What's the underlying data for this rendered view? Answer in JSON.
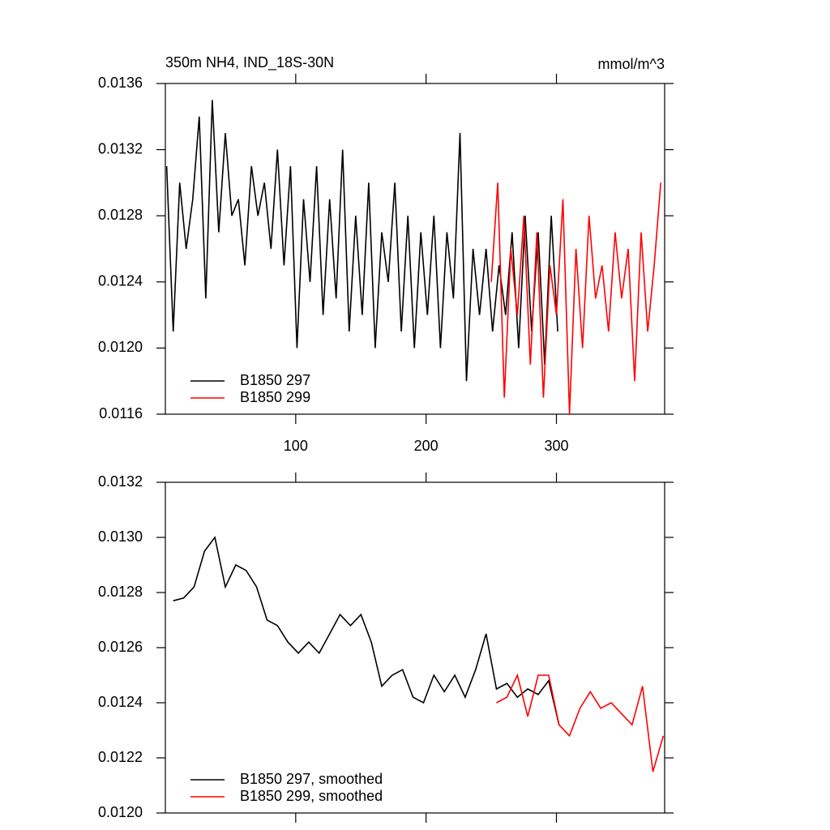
{
  "chart_data": [
    {
      "type": "line",
      "title": "350m NH4, IND_18S-30N",
      "units": "mmol/m^3",
      "xlim": [
        0,
        383
      ],
      "xticks": [
        100,
        200,
        300
      ],
      "xtick_labels": true,
      "ylim": [
        0.0116,
        0.0136
      ],
      "yticks": [
        0.0116,
        {
          "value": 0.012,
          "label": "0.0120"
        },
        0.0124,
        0.0128,
        0.0132,
        0.0136
      ],
      "legend": "lower left",
      "series": [
        {
          "name": "B1850 297",
          "color": "#000000",
          "x": [
            1,
            6,
            11,
            16,
            21,
            26,
            31,
            36,
            41,
            46,
            51,
            56,
            61,
            66,
            71,
            76,
            81,
            86,
            91,
            96,
            101,
            106,
            111,
            116,
            121,
            126,
            131,
            136,
            141,
            146,
            151,
            156,
            161,
            166,
            171,
            176,
            181,
            186,
            191,
            196,
            201,
            206,
            211,
            216,
            221,
            226,
            231,
            236,
            241,
            246,
            251,
            256,
            261,
            266,
            271,
            276,
            281,
            286,
            291,
            296,
            301
          ],
          "values": [
            0.0131,
            0.0121,
            0.013,
            0.0126,
            0.0129,
            0.0134,
            0.0123,
            0.0135,
            0.0127,
            0.0133,
            0.0128,
            0.0129,
            0.0125,
            0.0131,
            0.0128,
            0.013,
            0.0126,
            0.0132,
            0.0125,
            0.0131,
            0.012,
            0.0129,
            0.0124,
            0.0131,
            0.0122,
            0.0129,
            0.0123,
            0.0132,
            0.0121,
            0.0128,
            0.0122,
            0.013,
            0.012,
            0.0127,
            0.0124,
            0.013,
            0.0121,
            0.0128,
            0.012,
            0.0127,
            0.0122,
            0.0128,
            0.012,
            0.0127,
            0.0123,
            0.0133,
            0.0118,
            0.0126,
            0.0122,
            0.0126,
            0.0121,
            0.0125,
            0.0122,
            0.0127,
            0.012,
            0.0128,
            0.0121,
            0.0127,
            0.0119,
            0.0128,
            0.0121
          ]
        },
        {
          "name": "B1850 299",
          "color": "#ff0000",
          "x": [
            250,
            255,
            260,
            265,
            270,
            275,
            280,
            285,
            290,
            295,
            300,
            305,
            310,
            315,
            320,
            325,
            330,
            335,
            340,
            345,
            350,
            355,
            360,
            365,
            370,
            375,
            380
          ],
          "values": [
            0.0124,
            0.013,
            0.0117,
            0.0126,
            0.0122,
            0.0128,
            0.0119,
            0.0127,
            0.0117,
            0.0125,
            0.0122,
            0.0129,
            0.0116,
            0.0126,
            0.012,
            0.0128,
            0.0123,
            0.0125,
            0.0121,
            0.0127,
            0.0123,
            0.0126,
            0.0118,
            0.0127,
            0.0121,
            0.0125,
            0.013
          ]
        }
      ]
    },
    {
      "type": "line",
      "xlim": [
        0,
        383
      ],
      "xticks": [
        100,
        200,
        300
      ],
      "xtick_labels": false,
      "ylim": [
        0.012,
        0.0132
      ],
      "yticks": [
        {
          "value": 0.012,
          "label": "0.0120"
        },
        0.0122,
        0.0124,
        0.0126,
        0.0128,
        {
          "value": 0.013,
          "label": "0.0130"
        },
        0.0132
      ],
      "legend": "lower left",
      "series": [
        {
          "name": "B1850 297, smoothed",
          "color": "#000000",
          "x": [
            6,
            14,
            22,
            30,
            38,
            46,
            54,
            62,
            70,
            78,
            86,
            94,
            102,
            110,
            118,
            126,
            134,
            142,
            150,
            158,
            166,
            174,
            182,
            190,
            198,
            206,
            214,
            222,
            230,
            238,
            246,
            254,
            262,
            270,
            278,
            286,
            294,
            302
          ],
          "values": [
            0.01277,
            0.01278,
            0.01282,
            0.01295,
            0.013,
            0.01282,
            0.0129,
            0.01288,
            0.01282,
            0.0127,
            0.01268,
            0.01262,
            0.01258,
            0.01262,
            0.01258,
            0.01265,
            0.01272,
            0.01268,
            0.01272,
            0.01262,
            0.01246,
            0.0125,
            0.01252,
            0.01242,
            0.0124,
            0.0125,
            0.01244,
            0.0125,
            0.01242,
            0.01252,
            0.01265,
            0.01245,
            0.01247,
            0.01242,
            0.01245,
            0.01243,
            0.01248,
            0.01232
          ]
        },
        {
          "name": "B1850 299, smoothed",
          "color": "#ff0000",
          "x": [
            254,
            262,
            270,
            278,
            286,
            294,
            302,
            310,
            318,
            326,
            334,
            342,
            350,
            358,
            366,
            374,
            382
          ],
          "values": [
            0.0124,
            0.01242,
            0.0125,
            0.01235,
            0.0125,
            0.0125,
            0.01232,
            0.01228,
            0.01238,
            0.01244,
            0.01238,
            0.0124,
            0.01236,
            0.01232,
            0.01246,
            0.01215,
            0.01228
          ]
        }
      ]
    }
  ]
}
